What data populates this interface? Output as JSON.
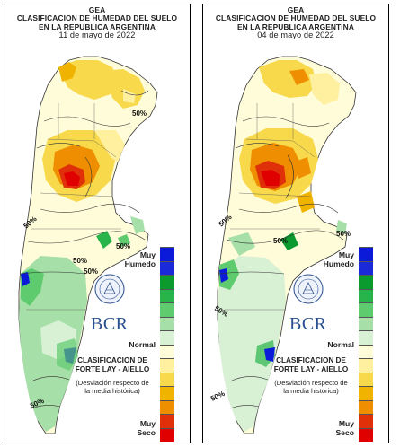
{
  "panels": [
    {
      "title_line1": "GEA",
      "title_line2": "CLASIFICACION DE HUMEDAD DEL SUELO",
      "title_line3": "EN LA REPUBLICA ARGENTINA",
      "date": "11 de mayo de 2022",
      "contour_labels": [
        "50%",
        "50%",
        "50%",
        "50%",
        "50%",
        "50%"
      ]
    },
    {
      "title_line1": "GEA",
      "title_line2": "CLASIFICACION DE HUMEDAD DEL SUELO",
      "title_line3": "EN LA REPUBLICA ARGENTINA",
      "date": "04 de mayo de 2022",
      "contour_labels": [
        "50%",
        "50%",
        "50%",
        "50%",
        "50%"
      ]
    }
  ],
  "legend": {
    "top_label_1": "Muy",
    "top_label_2": "Humedo",
    "mid_label": "Normal",
    "bottom_label_1": "Muy",
    "bottom_label_2": "Seco",
    "brand": "BCR",
    "classification_1": "CLASIFICACION DE",
    "classification_2": "FORTE LAY - AIELLO",
    "note_1": "(Desviación respecto de",
    "note_2": "la media histórica)",
    "colors": [
      "#0a1ad8",
      "#0a9a2e",
      "#28b44a",
      "#5ecb6e",
      "#a6dfa7",
      "#d8f0d4",
      "#fffcd9",
      "#fff0a0",
      "#f7d94b",
      "#f0b400",
      "#ee8e00",
      "#e0300a",
      "#e00000"
    ]
  },
  "map_colors": {
    "wet_strong": "#0a1ad8",
    "wet": "#28b44a",
    "wet_light": "#a6dfa7",
    "normal_green": "#d8f0d4",
    "normal": "#fffcd9",
    "dry_light": "#fff0a0",
    "dry": "#f7d94b",
    "dry_mid": "#f0b400",
    "dry_strong": "#ee8e00",
    "very_dry": "#e00000"
  }
}
